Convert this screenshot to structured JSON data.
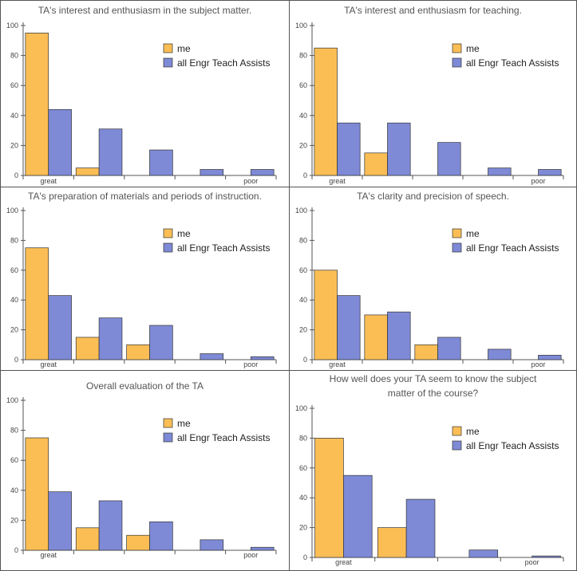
{
  "colors": {
    "me": "#FBBE55",
    "all": "#7E8AD6",
    "edge": "#333333",
    "axis": "#555555",
    "border": "#555555"
  },
  "chart_data": [
    {
      "type": "bar",
      "title": [
        "TA's interest and enthusiasm in the subject matter."
      ],
      "categories": [
        "great",
        "",
        "",
        "",
        "poor"
      ],
      "series": [
        {
          "name": "me",
          "values": [
            95,
            5,
            0,
            0,
            0
          ]
        },
        {
          "name": "all Engr Teach Assists",
          "values": [
            44,
            31,
            17,
            4,
            4
          ]
        }
      ],
      "ylim": [
        0,
        100
      ],
      "yticks": [
        0,
        20,
        40,
        60,
        80,
        100
      ],
      "legend": "right",
      "grid": false
    },
    {
      "type": "bar",
      "title": [
        "TA's interest and enthusiasm for teaching."
      ],
      "categories": [
        "great",
        "",
        "",
        "",
        "poor"
      ],
      "series": [
        {
          "name": "me",
          "values": [
            85,
            15,
            0,
            0,
            0
          ]
        },
        {
          "name": "all Engr Teach Assists",
          "values": [
            35,
            35,
            22,
            5,
            4
          ]
        }
      ],
      "ylim": [
        0,
        100
      ],
      "yticks": [
        0,
        20,
        40,
        60,
        80,
        100
      ],
      "legend": "right",
      "grid": false
    },
    {
      "type": "bar",
      "title": [
        "TA's preparation of materials and periods of instruction."
      ],
      "categories": [
        "great",
        "",
        "",
        "",
        "poor"
      ],
      "series": [
        {
          "name": "me",
          "values": [
            75,
            15,
            10,
            0,
            0
          ]
        },
        {
          "name": "all Engr Teach Assists",
          "values": [
            43,
            28,
            23,
            4,
            2
          ]
        }
      ],
      "ylim": [
        0,
        100
      ],
      "yticks": [
        0,
        20,
        40,
        60,
        80,
        100
      ],
      "legend": "right",
      "grid": false
    },
    {
      "type": "bar",
      "title": [
        "TA's clarity and precision of speech."
      ],
      "categories": [
        "great",
        "",
        "",
        "",
        "poor"
      ],
      "series": [
        {
          "name": "me",
          "values": [
            60,
            30,
            10,
            0,
            0
          ]
        },
        {
          "name": "all Engr Teach Assists",
          "values": [
            43,
            32,
            15,
            7,
            3
          ]
        }
      ],
      "ylim": [
        0,
        100
      ],
      "yticks": [
        0,
        20,
        40,
        60,
        80,
        100
      ],
      "legend": "right",
      "grid": false
    },
    {
      "type": "bar",
      "title": [
        "Overall evaluation of the TA"
      ],
      "categories": [
        "great",
        "",
        "",
        "",
        "poor"
      ],
      "series": [
        {
          "name": "me",
          "values": [
            75,
            15,
            10,
            0,
            0
          ]
        },
        {
          "name": "all Engr Teach Assists",
          "values": [
            39,
            33,
            19,
            7,
            2
          ]
        }
      ],
      "ylim": [
        0,
        100
      ],
      "yticks": [
        0,
        20,
        40,
        60,
        80,
        100
      ],
      "legend": "right",
      "grid": false
    },
    {
      "type": "bar",
      "title": [
        "How well does your TA seem to know the subject",
        "matter of the course?"
      ],
      "categories": [
        "great",
        "",
        "",
        "poor"
      ],
      "series": [
        {
          "name": "me",
          "values": [
            80,
            20,
            0,
            0
          ]
        },
        {
          "name": "all Engr Teach Assists",
          "values": [
            55,
            39,
            5,
            1
          ]
        }
      ],
      "ylim": [
        0,
        100
      ],
      "yticks": [
        0,
        20,
        40,
        60,
        80,
        100
      ],
      "legend": "right",
      "grid": false
    }
  ]
}
